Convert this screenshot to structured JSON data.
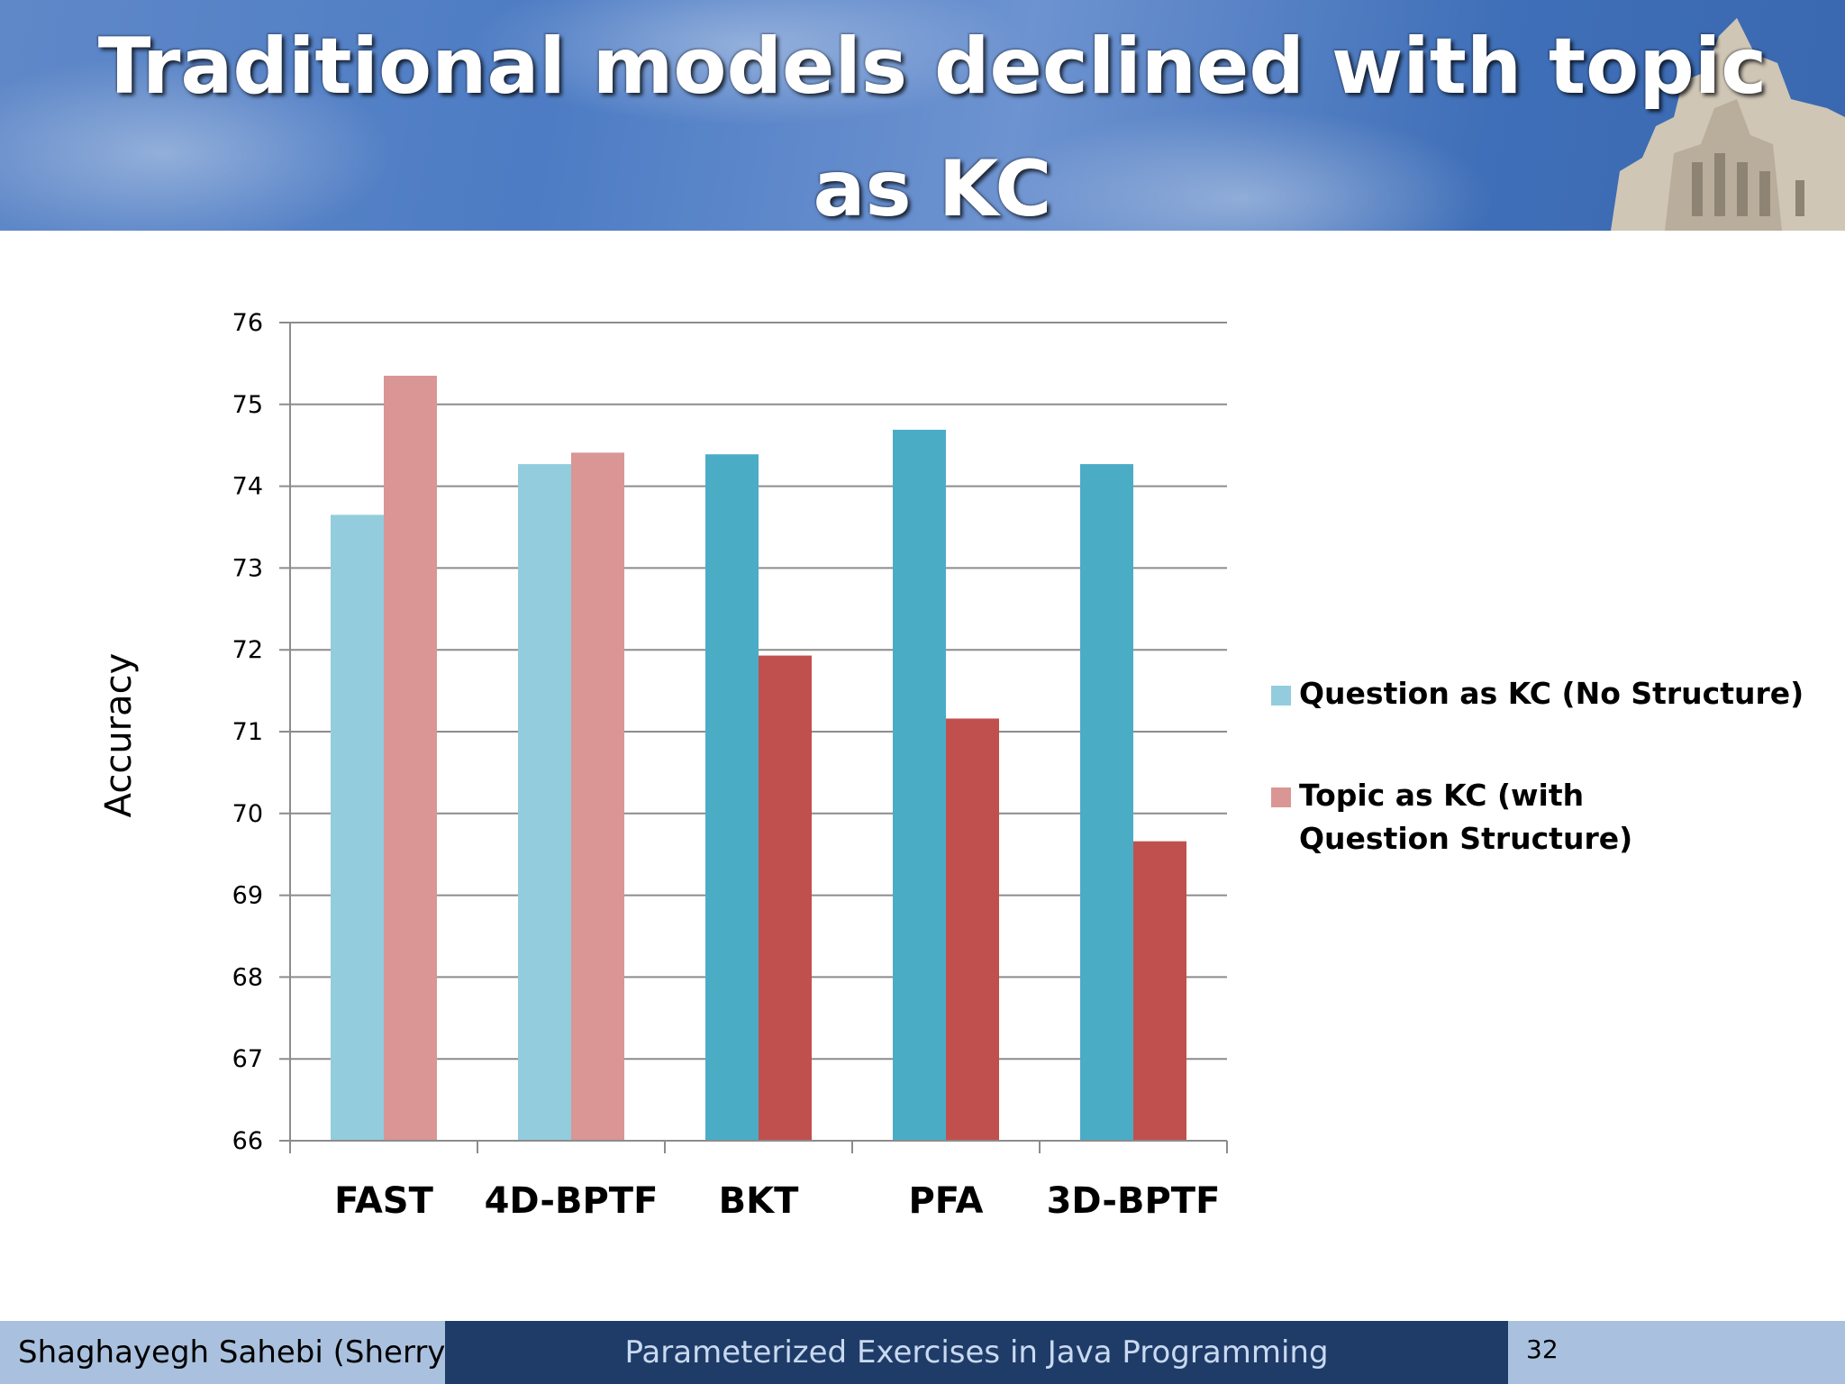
{
  "slide": {
    "title": "Traditional models declined with topic as KC"
  },
  "chart_data": {
    "type": "bar",
    "title": "",
    "xlabel": "",
    "ylabel": "Accuracy",
    "ylim": [
      66,
      76
    ],
    "yticks": [
      66,
      67,
      68,
      69,
      70,
      71,
      72,
      73,
      74,
      75,
      76
    ],
    "grid": true,
    "legend_position": "right",
    "categories": [
      "FAST",
      "4D-BPTF",
      "BKT",
      "PFA",
      "3D-BPTF"
    ],
    "series": [
      {
        "name": "Question as KC (No Structure)",
        "values": [
          73.65,
          74.27,
          74.39,
          74.69,
          74.27
        ],
        "color": "#4bacc6",
        "light_color": "#93cddd"
      },
      {
        "name": "Topic as KC (with Question Structure)",
        "values": [
          75.35,
          74.41,
          71.93,
          71.16,
          69.66
        ],
        "color": "#c0504d",
        "light_color": "#d99694"
      }
    ],
    "light_categories": [
      0,
      1
    ],
    "legend_swatch_colors": [
      "#93cddd",
      "#d99694"
    ]
  },
  "footer": {
    "author": "Shaghayegh Sahebi (Sherry)",
    "talk_title": "Parameterized Exercises in Java Programming",
    "page_number": "32"
  }
}
